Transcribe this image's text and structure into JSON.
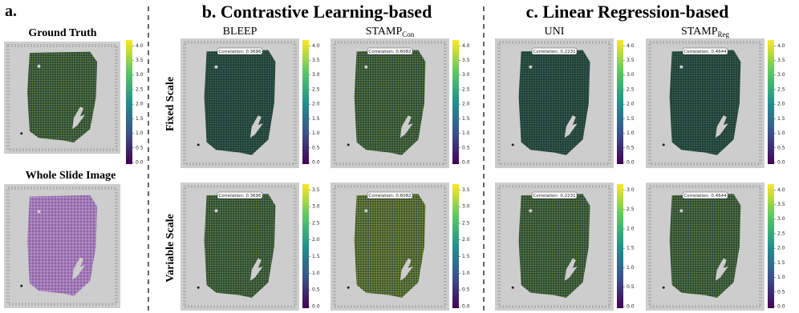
{
  "panel_a": {
    "label": "a.",
    "ground_truth": {
      "title": "Ground Truth",
      "colorbar": [
        "0.0",
        "0.5",
        "1.0",
        "1.5",
        "2.0",
        "2.5",
        "3.0",
        "3.5",
        "4.0"
      ]
    },
    "whole_slide_image": {
      "title": "Whole Slide Image"
    }
  },
  "rows": [
    "Fixed Scale",
    "Variable Scale"
  ],
  "panel_b": {
    "label": "b. Contrastive Learning-based",
    "columns": [
      {
        "title": "BLEEP",
        "correlation": "Correlation: 0.3696",
        "fixed_colorbar": [
          "0.0",
          "0.5",
          "1.0",
          "1.5",
          "2.0",
          "2.5",
          "3.0",
          "3.5",
          "4.0"
        ],
        "variable_colorbar": [
          "0.0",
          "0.5",
          "1.0",
          "1.5",
          "2.0",
          "2.5",
          "3.0",
          "3.5"
        ]
      },
      {
        "title": "STAMP",
        "subscript": "Con",
        "correlation": "Correlation: 0.6082",
        "fixed_colorbar": [
          "0.0",
          "0.5",
          "1.0",
          "1.5",
          "2.0",
          "2.5",
          "3.0",
          "3.5",
          "4.0"
        ],
        "variable_colorbar": [
          "0.0",
          "0.5",
          "1.0",
          "1.5",
          "2.0",
          "2.5",
          "3.0",
          "3.5"
        ]
      }
    ]
  },
  "panel_c": {
    "label": "c. Linear Regression-based",
    "columns": [
      {
        "title": "UNI",
        "correlation": "Correlation: 0.2231",
        "fixed_colorbar": [
          "0.0",
          "0.5",
          "1.0",
          "1.5",
          "2.0",
          "2.5",
          "3.0",
          "3.5",
          "4.0"
        ],
        "variable_colorbar": [
          "0.0",
          "0.5",
          "1.0",
          "1.5",
          "2.0",
          "2.5",
          "3.0"
        ]
      },
      {
        "title": "STAMP",
        "subscript": "Reg",
        "correlation": "Correlation: 0.4644",
        "fixed_colorbar": [
          "0.0",
          "0.5",
          "1.0",
          "1.5",
          "2.0",
          "2.5",
          "3.0",
          "3.5",
          "4.0"
        ],
        "variable_colorbar": [
          "0.0",
          "0.5",
          "1.0",
          "1.5",
          "2.0",
          "2.5",
          "3.0",
          "3.5",
          "4.0"
        ]
      }
    ]
  }
}
